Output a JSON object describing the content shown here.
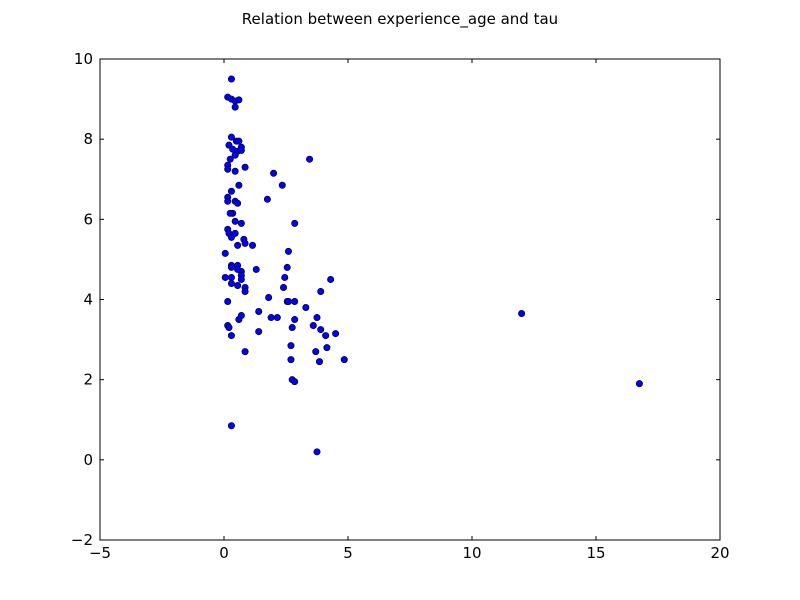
{
  "chart_data": {
    "type": "scatter",
    "title": "Relation between experience_age and tau",
    "xlabel": "",
    "ylabel": "",
    "xlim": [
      -5,
      20
    ],
    "ylim": [
      -2,
      10
    ],
    "xticks": [
      -5,
      0,
      5,
      10,
      15,
      20
    ],
    "yticks": [
      -2,
      0,
      2,
      4,
      6,
      8,
      10
    ],
    "xtick_labels": [
      "−5",
      "0",
      "5",
      "10",
      "15",
      "20"
    ],
    "ytick_labels": [
      "−2",
      "0",
      "2",
      "4",
      "6",
      "8",
      "10"
    ],
    "grid": false,
    "marker_color": "#0000ff",
    "marker_edge": "#000000",
    "series": [
      {
        "x": [
          0.3,
          0.15,
          0.3,
          0.45,
          0.6,
          0.45,
          0.3,
          0.5,
          0.6,
          0.7,
          0.2,
          0.35,
          0.55,
          0.7,
          0.45,
          0.25,
          0.15,
          0.15,
          0.45,
          0.85,
          0.6,
          0.3,
          0.15,
          0.15,
          0.45,
          0.55,
          0.35,
          0.25,
          0.45,
          0.7,
          0.15,
          0.2,
          0.3,
          0.45,
          0.8,
          0.85,
          0.55,
          1.15,
          0.05,
          0.3,
          0.3,
          0.55,
          0.7,
          0.55,
          0.7,
          0.05,
          0.3,
          0.7,
          0.3,
          0.55,
          0.85,
          0.85,
          0.15,
          0.7,
          0.6,
          0.15,
          0.2,
          0.3,
          0.85,
          0.3,
          1.3,
          1.8,
          1.4,
          1.9,
          2.15,
          1.4,
          2.0,
          1.75,
          2.35,
          2.6,
          2.55,
          2.45,
          2.4,
          2.55,
          2.6,
          2.85,
          2.85,
          2.85,
          2.75,
          2.7,
          2.7,
          2.75,
          2.85,
          3.45,
          3.3,
          3.6,
          3.75,
          3.9,
          3.7,
          3.85,
          4.1,
          4.15,
          4.5,
          4.85,
          4.3,
          3.9,
          3.75,
          12.0,
          16.75
        ],
        "y": [
          9.5,
          9.05,
          9.0,
          8.95,
          8.98,
          8.8,
          8.05,
          7.95,
          7.95,
          7.8,
          7.85,
          7.75,
          7.7,
          7.72,
          7.6,
          7.5,
          7.35,
          7.25,
          7.2,
          7.3,
          6.85,
          6.7,
          6.55,
          6.45,
          6.45,
          6.4,
          6.15,
          6.15,
          5.95,
          5.9,
          5.75,
          5.65,
          5.55,
          5.65,
          5.5,
          5.4,
          5.35,
          5.35,
          5.15,
          4.85,
          4.8,
          4.85,
          4.7,
          4.75,
          4.6,
          4.55,
          4.55,
          4.5,
          4.4,
          4.35,
          4.3,
          4.2,
          3.95,
          3.6,
          3.5,
          3.35,
          3.3,
          3.1,
          2.7,
          0.85,
          4.75,
          4.05,
          3.7,
          3.55,
          3.55,
          3.2,
          7.15,
          6.5,
          6.85,
          5.2,
          4.8,
          4.55,
          4.3,
          3.95,
          3.95,
          5.9,
          3.95,
          3.5,
          3.3,
          2.85,
          2.5,
          2.0,
          1.95,
          7.5,
          3.8,
          3.35,
          3.55,
          3.25,
          2.7,
          2.45,
          3.1,
          2.8,
          3.15,
          2.5,
          4.5,
          4.2,
          0.2,
          3.65,
          1.9
        ]
      }
    ]
  }
}
